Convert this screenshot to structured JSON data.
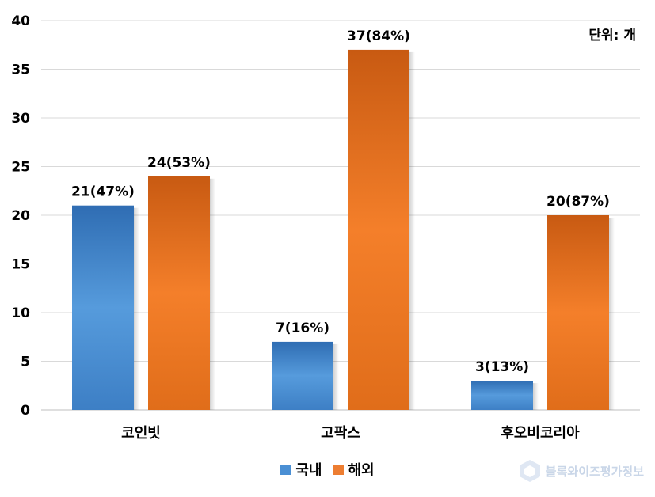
{
  "chart_data": {
    "type": "bar",
    "categories": [
      "코인빗",
      "고팍스",
      "후오비코리아"
    ],
    "series": [
      {
        "name": "국내",
        "values": [
          21,
          7,
          3
        ],
        "labels": [
          "21(47%)",
          "7(16%)",
          "3(13%)"
        ],
        "color": "#4a8fd4"
      },
      {
        "name": "해외",
        "values": [
          24,
          37,
          20
        ],
        "labels": [
          "24(53%)",
          "37(84%)",
          "20(87%)"
        ],
        "color": "#ed7d31"
      }
    ],
    "yticks": [
      "0",
      "5",
      "10",
      "15",
      "20",
      "25",
      "30",
      "35",
      "40"
    ],
    "ylim": [
      0,
      40
    ],
    "grid": true,
    "legend_position": "bottom"
  },
  "unit_label": "단위: 개",
  "watermark_text": "블록와이즈평가정보"
}
